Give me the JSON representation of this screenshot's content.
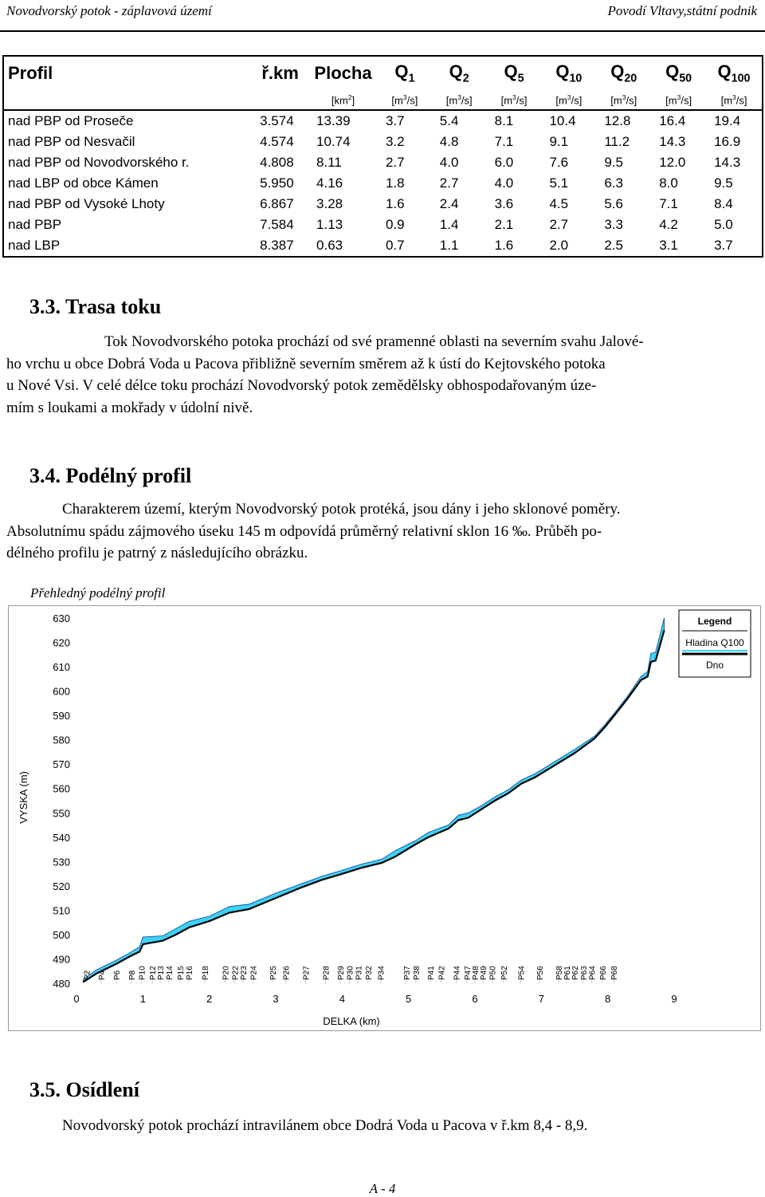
{
  "header": {
    "left": "Novodvorský potok - záplavová území",
    "right": "Povodí Vltavy,státní podnik"
  },
  "table": {
    "columns": [
      "Profil",
      "ř.km",
      "Plocha",
      "Q1",
      "Q2",
      "Q5",
      "Q10",
      "Q20",
      "Q50",
      "Q100"
    ],
    "units": [
      "",
      "",
      "[km2]",
      "[m3/s]",
      "[m3/s]",
      "[m3/s]",
      "[m3/s]",
      "[m3/s]",
      "[m3/s]",
      "[m3/s]"
    ],
    "rows": [
      [
        "nad PBP od Proseče",
        "3.574",
        "13.39",
        "3.7",
        "5.4",
        "8.1",
        "10.4",
        "12.8",
        "16.4",
        "19.4"
      ],
      [
        "nad PBP od Nesvačil",
        "4.574",
        "10.74",
        "3.2",
        "4.8",
        "7.1",
        "9.1",
        "11.2",
        "14.3",
        "16.9"
      ],
      [
        "nad PBP od Novodvorského r.",
        "4.808",
        "8.11",
        "2.7",
        "4.0",
        "6.0",
        "7.6",
        "9.5",
        "12.0",
        "14.3"
      ],
      [
        "nad LBP od obce Kámen",
        "5.950",
        "4.16",
        "1.8",
        "2.7",
        "4.0",
        "5.1",
        "6.3",
        "8.0",
        "9.5"
      ],
      [
        "nad PBP od Vysoké Lhoty",
        "6.867",
        "3.28",
        "1.6",
        "2.4",
        "3.6",
        "4.5",
        "5.6",
        "7.1",
        "8.4"
      ],
      [
        "nad PBP",
        "7.584",
        "1.13",
        "0.9",
        "1.4",
        "2.1",
        "2.7",
        "3.3",
        "4.2",
        "5.0"
      ],
      [
        "nad LBP",
        "8.387",
        "0.63",
        "0.7",
        "1.1",
        "1.6",
        "2.0",
        "2.5",
        "3.1",
        "3.7"
      ]
    ]
  },
  "sec33": {
    "title": "3.3. Trasa toku",
    "lines": [
      "Tok Novodvorského potoka prochází od své pramenné oblasti na severním svahu Jalové-",
      "ho vrchu u obce Dobrá Voda u Pacova přibližně severním směrem až k ústí do Kejtovského potoka",
      "u Nové Vsi. V celé délce toku prochází Novodvorský potok zemědělsky obhospodařovaným úze-",
      "mím s loukami a mokřady v údolní nivě."
    ]
  },
  "sec34": {
    "title": "3.4. Podélný profil",
    "lines": [
      "Charakterem území, kterým Novodvorský potok protéká, jsou dány i jeho sklonové poměry.",
      "Absolutnímu spádu zájmového úseku 145 m odpovídá  průměrný relativní sklon 16 ‰. Průběh po-",
      "délného profilu je patrný z následujícího obrázku."
    ]
  },
  "chart_caption": "Přehledný podélný profil",
  "chart_data": {
    "type": "line",
    "xlabel": "DELKA (km)",
    "ylabel": "VYSKA (m)",
    "xlim": [
      0,
      9
    ],
    "ylim": [
      480,
      630
    ],
    "x_ticks": [
      "0",
      "1",
      "2",
      "3",
      "4",
      "5",
      "6",
      "7",
      "8",
      "9"
    ],
    "y_ticks": [
      "480",
      "490",
      "500",
      "510",
      "520",
      "530",
      "540",
      "550",
      "560",
      "570",
      "580",
      "590",
      "600",
      "610",
      "620",
      "630"
    ],
    "legend": {
      "title": "Legend",
      "position": "top-right",
      "entries": [
        "Hladina  Q100",
        "Dno"
      ]
    },
    "series": [
      {
        "name": "Dno",
        "color": "#000000",
        "x": [
          0.1,
          0.3,
          0.6,
          0.8,
          0.95,
          1.0,
          1.3,
          1.5,
          1.7,
          2.0,
          2.3,
          2.6,
          3.0,
          3.4,
          3.7,
          3.95,
          4.3,
          4.6,
          4.8,
          5.1,
          5.3,
          5.6,
          5.75,
          5.9,
          6.1,
          6.3,
          6.5,
          6.7,
          6.9,
          7.2,
          7.5,
          7.8,
          7.95,
          8.1,
          8.3,
          8.5,
          8.6,
          8.65,
          8.72,
          8.85
        ],
        "y": [
          480.5,
          484,
          488,
          491,
          493,
          496,
          497.5,
          500,
          503,
          505.5,
          509,
          510.5,
          515,
          519.5,
          522.5,
          524.5,
          527.5,
          529.5,
          532,
          537,
          540,
          543.5,
          547,
          548,
          551.5,
          555,
          558,
          562,
          564.5,
          569.5,
          574.5,
          580.5,
          585,
          590,
          597,
          604.5,
          606,
          612,
          612.5,
          625
        ]
      },
      {
        "name": "Hladina  Q100",
        "color": "#3cd2f5",
        "x": [
          0.1,
          0.3,
          0.6,
          0.8,
          0.95,
          1.0,
          1.3,
          1.5,
          1.7,
          2.0,
          2.3,
          2.6,
          3.0,
          3.4,
          3.7,
          3.95,
          4.3,
          4.6,
          4.8,
          5.1,
          5.3,
          5.6,
          5.75,
          5.9,
          6.1,
          6.3,
          6.5,
          6.7,
          6.9,
          7.2,
          7.5,
          7.8,
          7.95,
          8.1,
          8.3,
          8.5,
          8.6,
          8.65,
          8.72,
          8.85
        ],
        "y": [
          481.5,
          485.5,
          489.5,
          492.5,
          495,
          499,
          499.5,
          502.5,
          505.5,
          507.5,
          511.5,
          512.5,
          517,
          521,
          524,
          526,
          529,
          531,
          534.5,
          538.5,
          542,
          545,
          549,
          550,
          553,
          556.5,
          559.5,
          563.5,
          566,
          571,
          576,
          581.5,
          586,
          591,
          598,
          606,
          608,
          615.5,
          616,
          630
        ]
      }
    ],
    "profile_labels": [
      "P2",
      "P4",
      "P6",
      "P8",
      "P10",
      "P12",
      "P13",
      "P14",
      "P15",
      "P16",
      "P18",
      "P20",
      "P22",
      "P23",
      "P24",
      "P25",
      "P26",
      "P27",
      "P28",
      "P29",
      "P30",
      "P31",
      "P32",
      "P34",
      "P37",
      "P38",
      "P41",
      "P42",
      "P44",
      "P47",
      "P48",
      "P49",
      "P50",
      "P52",
      "P54",
      "P56",
      "P58",
      "P61",
      "P62",
      "P63",
      "P64",
      "P66",
      "P68"
    ],
    "profile_label_km": [
      0.15,
      0.37,
      0.6,
      0.83,
      0.98,
      1.14,
      1.26,
      1.39,
      1.56,
      1.69,
      1.93,
      2.24,
      2.38,
      2.51,
      2.66,
      2.95,
      3.15,
      3.45,
      3.75,
      3.97,
      4.11,
      4.24,
      4.39,
      4.58,
      4.97,
      5.11,
      5.33,
      5.49,
      5.72,
      5.88,
      6.0,
      6.12,
      6.26,
      6.43,
      6.69,
      6.97,
      7.26,
      7.38,
      7.5,
      7.63,
      7.76,
      7.92,
      8.09
    ]
  },
  "sec35": {
    "title": "3.5. Osídlení",
    "text": "Novodvorský potok prochází intravilánem obce Dodrá Voda u Pacova v ř.km 8,4 - 8,9."
  },
  "page_number": "A - 4"
}
